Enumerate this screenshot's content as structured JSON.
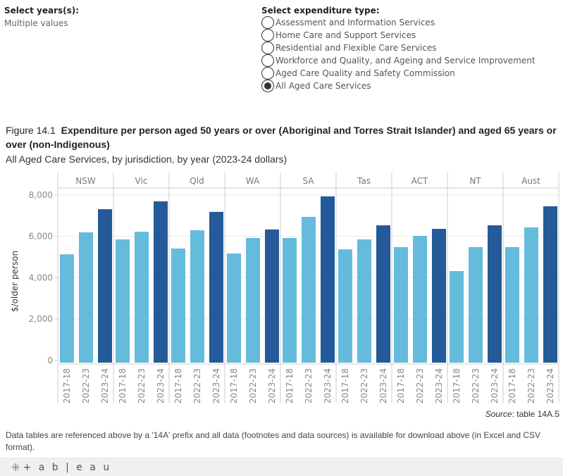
{
  "filters": {
    "years": {
      "title": "Select years(s):",
      "value": "Multiple values"
    },
    "expenditure": {
      "title": "Select expenditure type:",
      "options": [
        {
          "label": "Assessment and Information Services",
          "checked": false
        },
        {
          "label": "Home Care and Support Services",
          "checked": false
        },
        {
          "label": "Residential and Flexible Care Services",
          "checked": false
        },
        {
          "label": "Workforce and Quality, and Ageing and Service Improvement",
          "checked": false
        },
        {
          "label": "Aged Care Quality and Safety Commission",
          "checked": false
        },
        {
          "label": "All Aged Care Services",
          "checked": true
        }
      ]
    }
  },
  "figure": {
    "number": "Figure 14.1",
    "title": "Expenditure per person aged 50 years or over (Aboriginal and Torres Strait Islander) and aged 65 years or over (non-Indigenous)",
    "subtitle": "All Aged Care Services, by jurisdiction, by year (2023-24 dollars)"
  },
  "source": {
    "label": "Source",
    "text": ": table 14A.5"
  },
  "footnote": "Data tables are referenced above by a '14A' prefix and all data (footnotes and data sources) is available for download above (in Excel and CSV format).",
  "footer": {
    "logo_text": "+ a b | e a u",
    "logo_icon": "tableau-cross-icon"
  },
  "colors": {
    "past_years": "#64bbdb",
    "latest_year": "#255a99",
    "grid": "#ececec",
    "divider": "#cccccc"
  },
  "chart_data": {
    "type": "bar",
    "title": "Expenditure per person aged 50 years or over (Aboriginal and Torres Strait Islander) and aged 65 years or over (non-Indigenous)",
    "xlabel": "",
    "ylabel": "$/older person",
    "ylim": [
      0,
      8500
    ],
    "yticks": [
      0,
      2000,
      4000,
      6000,
      8000
    ],
    "ytick_labels": [
      "0",
      "2,000",
      "4,000",
      "6,000",
      "8,000"
    ],
    "grid": true,
    "panels": [
      "NSW",
      "Vic",
      "Qld",
      "WA",
      "SA",
      "Tas",
      "ACT",
      "NT",
      "Aust"
    ],
    "categories": [
      "2017-18",
      "2022-23",
      "2023-24"
    ],
    "series": [
      {
        "name": "NSW",
        "values": [
          5130,
          6190,
          7310
        ]
      },
      {
        "name": "Vic",
        "values": [
          5850,
          6220,
          7690
        ]
      },
      {
        "name": "Qld",
        "values": [
          5410,
          6290,
          7180
        ]
      },
      {
        "name": "WA",
        "values": [
          5170,
          5920,
          6330
        ]
      },
      {
        "name": "SA",
        "values": [
          5920,
          6940,
          7930
        ]
      },
      {
        "name": "Tas",
        "values": [
          5370,
          5850,
          6530
        ]
      },
      {
        "name": "ACT",
        "values": [
          5480,
          6020,
          6360
        ]
      },
      {
        "name": "NT",
        "values": [
          4320,
          5480,
          6530
        ]
      },
      {
        "name": "Aust",
        "values": [
          5480,
          6430,
          7450
        ]
      }
    ]
  }
}
